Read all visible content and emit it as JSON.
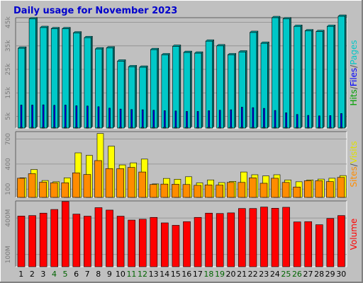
{
  "chart_data": {
    "type": "bar",
    "title": "Daily usage for November 2023",
    "categories": [
      "1",
      "2",
      "3",
      "4",
      "5",
      "6",
      "7",
      "8",
      "9",
      "10",
      "11",
      "12",
      "13",
      "14",
      "15",
      "16",
      "17",
      "18",
      "19",
      "20",
      "21",
      "22",
      "23",
      "24",
      "25",
      "26",
      "27",
      "28",
      "29",
      "30"
    ],
    "weekend_days": [
      "4",
      "5",
      "11",
      "12",
      "18",
      "19",
      "25",
      "26"
    ],
    "panels": [
      {
        "name": "hits-files-pages",
        "ylim": [
          0,
          47000
        ],
        "yticks": [
          {
            "label": "5k",
            "value": 5000
          },
          {
            "label": "15k",
            "value": 15000
          },
          {
            "label": "25k",
            "value": 25000
          },
          {
            "label": "35k",
            "value": 35000
          },
          {
            "label": "45k",
            "value": 45000
          }
        ],
        "series": [
          {
            "name": "Hits",
            "color": "#00c8c8",
            "values": [
              34000,
              46500,
              42800,
              42300,
              42300,
              40500,
              38500,
              33700,
              34100,
              28500,
              26100,
              25900,
              33400,
              31200,
              34800,
              32200,
              31900,
              37000,
              35000,
              31200,
              32400,
              40700,
              36100,
              47000,
              46500,
              43300,
              41400,
              41100,
              43300,
              47600
            ]
          },
          {
            "name": "Files",
            "color": "#0000ff",
            "values": [
              9800,
              9800,
              9900,
              9700,
              9800,
              9500,
              9400,
              9100,
              8500,
              8100,
              7900,
              7800,
              7600,
              7400,
              7300,
              7100,
              7100,
              7400,
              7600,
              7800,
              8900,
              8700,
              8400,
              7500,
              6500,
              5800,
              5400,
              5200,
              5300,
              6200
            ]
          },
          {
            "name": "Pages",
            "color": "#00c8c8",
            "values": [
              300,
              300,
              300,
              300,
              300,
              300,
              300,
              300,
              300,
              300,
              300,
              300,
              300,
              300,
              300,
              300,
              300,
              300,
              300,
              300,
              300,
              300,
              300,
              300,
              300,
              300,
              300,
              300,
              300,
              300
            ]
          }
        ],
        "side_label": [
          {
            "text": "Hits",
            "color": "#00a000"
          },
          {
            "text": "/",
            "color": "#505050"
          },
          {
            "text": "Files",
            "color": "#0000ff"
          },
          {
            "text": "/",
            "color": "#505050"
          },
          {
            "text": "Pages",
            "color": "#00c8c8"
          }
        ]
      },
      {
        "name": "sites-visits",
        "ylim": [
          0,
          790
        ],
        "yticks": [
          {
            "label": "100",
            "value": 100
          },
          {
            "label": "400",
            "value": 400
          },
          {
            "label": "700",
            "value": 700
          }
        ],
        "series": [
          {
            "name": "Visits",
            "color": "#ffff00",
            "values": [
              235,
              335,
              203,
              188,
              235,
              535,
              505,
              767,
              615,
              390,
              415,
              460,
              162,
              228,
              218,
              248,
              175,
              210,
              178,
              192,
              305,
              272,
              258,
              272,
              210,
              188,
              210,
              220,
              230,
              262
            ]
          },
          {
            "name": "Sites",
            "color": "#ff8c00",
            "values": [
              230,
              285,
              183,
              175,
              175,
              295,
              275,
              442,
              346,
              345,
              360,
              305,
              155,
              160,
              158,
              155,
              145,
              150,
              148,
              180,
              180,
              235,
              170,
              230,
              180,
              125,
              200,
              200,
              190,
              240
            ]
          }
        ],
        "side_label": [
          {
            "text": "Sites",
            "color": "#ff8c00"
          },
          {
            "text": "/",
            "color": "#505050"
          },
          {
            "text": "Visits",
            "color": "#e0e000"
          }
        ]
      },
      {
        "name": "volume",
        "ylim": [
          0,
          540000000
        ],
        "yticks": [
          {
            "label": "100M",
            "value": 100000000
          },
          {
            "label": "400M",
            "value": 400000000
          }
        ],
        "series": [
          {
            "name": "Volume",
            "color": "#ff0000",
            "values": [
              416000000,
              420000000,
              440000000,
              470000000,
              535000000,
              432000000,
              415000000,
              485000000,
              465000000,
              415000000,
              383000000,
              390000000,
              405000000,
              360000000,
              340000000,
              370000000,
              405000000,
              440000000,
              437000000,
              442000000,
              478000000,
              478000000,
              490000000,
              480000000,
              488000000,
              368000000,
              370000000,
              345000000,
              396000000,
              420000000
            ]
          }
        ],
        "side_label": [
          {
            "text": "Volume",
            "color": "#ff0000"
          }
        ]
      }
    ]
  }
}
